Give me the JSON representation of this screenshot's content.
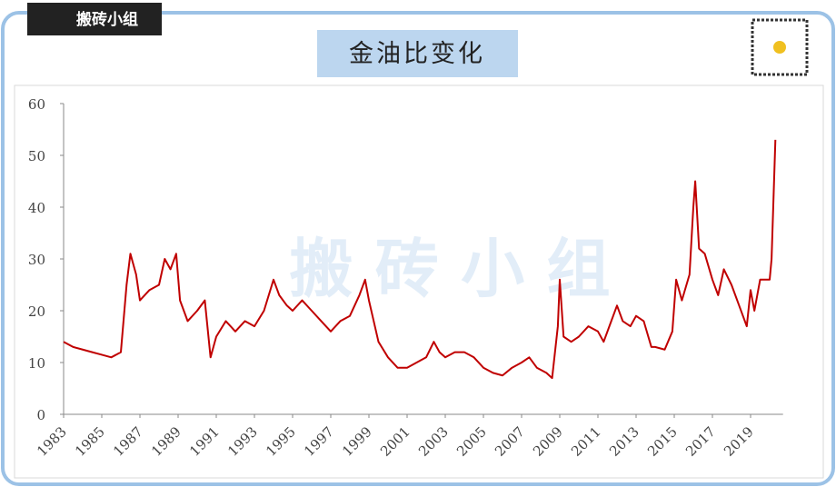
{
  "logo": "搬砖小组",
  "watermark": "搬 砖 小 组",
  "chart_data": {
    "type": "line",
    "title": "金油比变化",
    "xlim": [
      1983,
      2020.7
    ],
    "xticks": [
      1983,
      1985,
      1987,
      1989,
      1991,
      1993,
      1995,
      1997,
      1999,
      2001,
      2003,
      2005,
      2007,
      2009,
      2011,
      2013,
      2015,
      2017,
      2019
    ],
    "ylim": [
      0,
      60
    ],
    "yticks": [
      0,
      10,
      20,
      30,
      40,
      50,
      60
    ],
    "series": [
      {
        "color": "#c00000",
        "x": [
          1983.0,
          1983.5,
          1984,
          1984.5,
          1985,
          1985.5,
          1986.0,
          1986.3,
          1986.5,
          1986.8,
          1987,
          1987.5,
          1988,
          1988.3,
          1988.6,
          1988.9,
          1989.1,
          1989.5,
          1990,
          1990.4,
          1990.7,
          1991,
          1991.5,
          1992,
          1992.5,
          1993,
          1993.5,
          1994,
          1994.3,
          1994.7,
          1995,
          1995.5,
          1996,
          1996.5,
          1997,
          1997.5,
          1998,
          1998.5,
          1998.8,
          1999,
          1999.5,
          2000,
          2000.5,
          2001,
          2001.5,
          2002,
          2002.4,
          2002.7,
          2003,
          2003.5,
          2004,
          2004.5,
          2005,
          2005.5,
          2006,
          2006.5,
          2007,
          2007.4,
          2007.8,
          2008.3,
          2008.6,
          2008.9,
          2009.0,
          2009.2,
          2009.6,
          2010,
          2010.5,
          2011,
          2011.3,
          2011.7,
          2012,
          2012.3,
          2012.7,
          2013,
          2013.4,
          2013.8,
          2014,
          2014.5,
          2014.9,
          2015.1,
          2015.4,
          2015.8,
          2016.0,
          2016.1,
          2016.3,
          2016.6,
          2017,
          2017.3,
          2017.6,
          2018,
          2018.4,
          2018.8,
          2019.0,
          2019.2,
          2019.5,
          2019.8,
          2020.0,
          2020.1,
          2020.3
        ],
        "values": [
          14,
          13,
          12.5,
          12,
          11.5,
          11,
          12,
          25,
          31,
          27,
          22,
          24,
          25,
          30,
          28,
          31,
          22,
          18,
          20,
          22,
          11,
          15,
          18,
          16,
          18,
          17,
          20,
          26,
          23,
          21,
          20,
          22,
          20,
          18,
          16,
          18,
          19,
          23,
          26,
          22,
          14,
          11,
          9,
          9,
          10,
          11,
          14,
          12,
          11,
          12,
          12,
          11,
          9,
          8,
          7.5,
          9,
          10,
          11,
          9,
          8,
          7,
          17,
          26,
          15,
          14,
          15,
          17,
          16,
          14,
          18,
          21,
          18,
          17,
          19,
          18,
          13,
          13,
          12.5,
          16,
          26,
          22,
          27,
          40,
          45,
          32,
          31,
          26,
          23,
          28,
          25,
          21,
          17,
          24,
          20,
          26,
          26,
          26,
          30,
          53
        ]
      }
    ]
  }
}
